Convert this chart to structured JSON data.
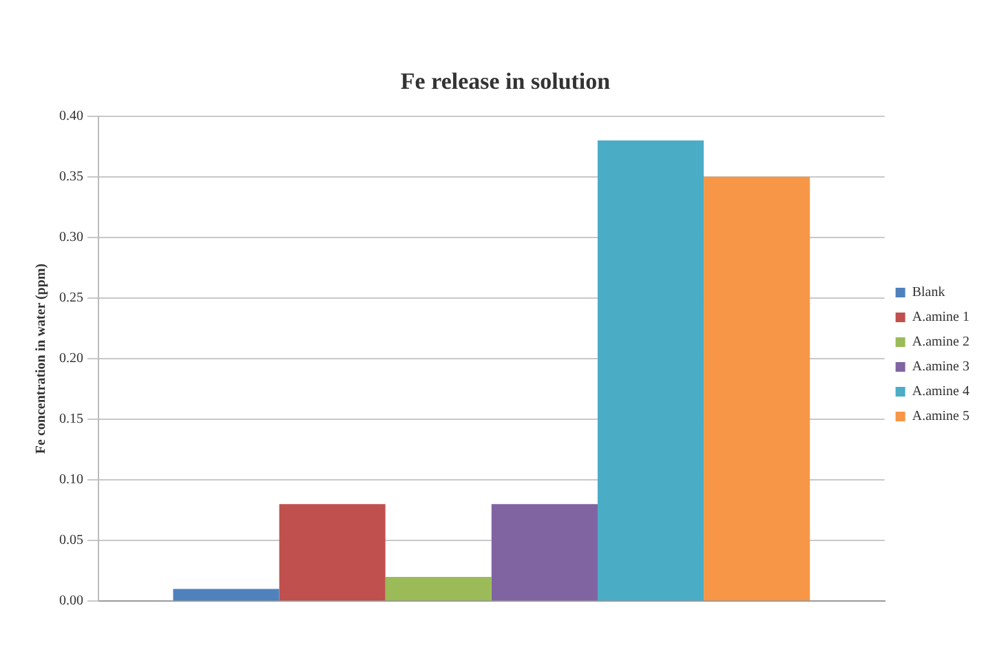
{
  "chart_data": {
    "type": "bar",
    "title": "Fe release in solution",
    "ylabel": "Fe concentration in water (ppm)",
    "categories": [
      null
    ],
    "series": [
      {
        "name": "Blank",
        "color": "#4f81bd",
        "values": [
          0.01
        ]
      },
      {
        "name": "A.amine 1",
        "color": "#c0504d",
        "values": [
          0.08
        ]
      },
      {
        "name": "A.amine 2",
        "color": "#9bbb59",
        "values": [
          0.02
        ]
      },
      {
        "name": "A.amine 3",
        "color": "#8064a2",
        "values": [
          0.08
        ]
      },
      {
        "name": "A.amine 4",
        "color": "#4bacc6",
        "values": [
          0.38
        ]
      },
      {
        "name": "A.amine 5",
        "color": "#f79646",
        "values": [
          0.35
        ]
      }
    ],
    "ylim": [
      0,
      0.4
    ],
    "yticks": [
      {
        "value": 0,
        "label": "0.00"
      },
      {
        "value": 0.05,
        "label": "0.05"
      },
      {
        "value": 0.1,
        "label": "0.10"
      },
      {
        "value": 0.15,
        "label": "0.15"
      },
      {
        "value": 0.2,
        "label": "0.20"
      },
      {
        "value": 0.25,
        "label": "0.25"
      },
      {
        "value": 0.3,
        "label": "0.30"
      },
      {
        "value": 0.35,
        "label": "0.35"
      },
      {
        "value": 0.4,
        "label": "0.40"
      }
    ],
    "grid": "y",
    "legend": "right"
  }
}
